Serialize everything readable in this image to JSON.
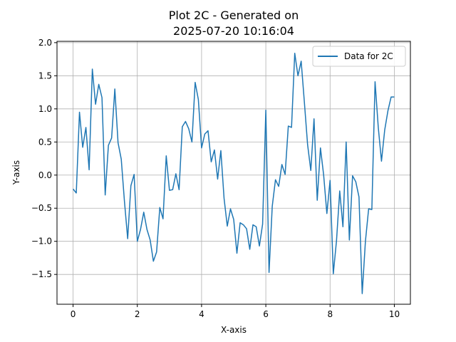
{
  "chart_data": {
    "type": "line",
    "title_line1": "Plot 2C - Generated on",
    "title_line2": "2025-07-20 10:16:04",
    "xlabel": "X-axis",
    "ylabel": "Y-axis",
    "xlim": [
      -0.5,
      10.5
    ],
    "ylim": [
      -1.95,
      2.02
    ],
    "xticks": [
      0,
      2,
      4,
      6,
      8,
      10
    ],
    "xtick_labels": [
      "0",
      "2",
      "4",
      "6",
      "8",
      "10"
    ],
    "yticks": [
      -1.5,
      -1.0,
      -0.5,
      0.0,
      0.5,
      1.0,
      1.5,
      2.0
    ],
    "ytick_labels": [
      "−1.5",
      "−1.0",
      "−0.5",
      "0.0",
      "0.5",
      "1.0",
      "1.5",
      "2.0"
    ],
    "grid": true,
    "legend_position": "top-right",
    "colors": {
      "series": "#1f77b4",
      "grid": "#b0b0b0",
      "axes": "#000000"
    },
    "series": [
      {
        "name": "Data for 2C",
        "x": [
          0.0,
          0.1,
          0.2,
          0.3,
          0.4,
          0.5,
          0.6,
          0.7,
          0.8,
          0.9,
          1.0,
          1.1,
          1.2,
          1.3,
          1.4,
          1.5,
          1.6,
          1.7,
          1.8,
          1.9,
          2.0,
          2.1,
          2.2,
          2.3,
          2.4,
          2.5,
          2.6,
          2.7,
          2.8,
          2.9,
          3.0,
          3.1,
          3.2,
          3.3,
          3.4,
          3.5,
          3.6,
          3.7,
          3.8,
          3.9,
          4.0,
          4.1,
          4.2,
          4.3,
          4.4,
          4.5,
          4.6,
          4.7,
          4.8,
          4.9,
          5.0,
          5.1,
          5.2,
          5.3,
          5.4,
          5.5,
          5.6,
          5.7,
          5.8,
          5.9,
          6.0,
          6.1,
          6.2,
          6.3,
          6.4,
          6.5,
          6.6,
          6.7,
          6.8,
          6.9,
          7.0,
          7.1,
          7.2,
          7.3,
          7.4,
          7.5,
          7.6,
          7.7,
          7.8,
          7.9,
          8.0,
          8.1,
          8.2,
          8.3,
          8.4,
          8.5,
          8.6,
          8.7,
          8.8,
          8.9,
          9.0,
          9.1,
          9.2,
          9.3,
          9.4,
          9.5,
          9.6,
          9.7,
          9.8,
          9.9,
          10.0
        ],
        "y": [
          -0.21,
          -0.27,
          0.95,
          0.42,
          0.72,
          0.08,
          1.6,
          1.07,
          1.37,
          1.17,
          -0.3,
          0.45,
          0.56,
          1.3,
          0.49,
          0.24,
          -0.4,
          -0.96,
          -0.16,
          0.01,
          -1.0,
          -0.82,
          -0.56,
          -0.82,
          -0.98,
          -1.3,
          -1.16,
          -0.49,
          -0.66,
          0.29,
          -0.23,
          -0.22,
          0.02,
          -0.22,
          0.73,
          0.81,
          0.7,
          0.5,
          1.4,
          1.14,
          0.41,
          0.62,
          0.67,
          0.2,
          0.38,
          -0.06,
          0.37,
          -0.35,
          -0.77,
          -0.51,
          -0.67,
          -1.18,
          -0.72,
          -0.75,
          -0.81,
          -1.12,
          -0.75,
          -0.78,
          -1.07,
          -0.74,
          0.98,
          -1.47,
          -0.47,
          -0.07,
          -0.17,
          0.16,
          0.01,
          0.74,
          0.72,
          1.84,
          1.5,
          1.72,
          1.1,
          0.46,
          0.07,
          0.85,
          -0.38,
          0.41,
          0.0,
          -0.58,
          -0.08,
          -1.49,
          -0.99,
          -0.24,
          -0.78,
          0.5,
          -0.98,
          -0.01,
          -0.1,
          -0.33,
          -1.79,
          -1.0,
          -0.51,
          -0.52,
          1.41,
          0.72,
          0.21,
          0.68,
          0.97,
          1.18,
          1.18
        ]
      }
    ]
  }
}
